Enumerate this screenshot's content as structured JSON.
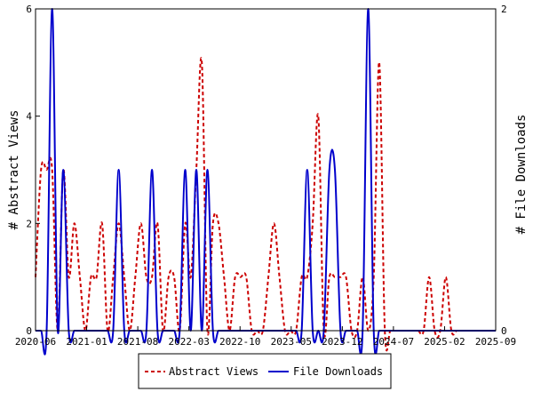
{
  "chart_data": {
    "type": "line",
    "x_tick_labels": [
      "2020-06",
      "2021-01",
      "2021-08",
      "2022-03",
      "2022-10",
      "2023-05",
      "2023-12",
      "2024-07",
      "2025-02",
      "2025-09"
    ],
    "ylabel": "# Abstract Views",
    "y2label": "# File Downloads",
    "ylim": [
      0,
      6
    ],
    "y2lim": [
      0,
      2
    ],
    "y_ticks": [
      "0",
      "2",
      "4",
      "6"
    ],
    "y2_ticks": [
      "0",
      "2"
    ],
    "grid": false,
    "legend_position": "bottom-center",
    "series": [
      {
        "name": "Abstract Views",
        "axis": "left",
        "color": "#cc0000",
        "style": "dashed",
        "values": [
          1,
          3,
          3,
          3,
          0,
          3,
          1,
          2,
          1,
          0,
          1,
          1,
          2,
          0,
          1,
          2,
          1,
          0,
          1,
          2,
          1,
          1,
          2,
          0,
          1,
          1,
          0,
          2,
          1,
          3,
          5,
          0,
          2,
          2,
          1,
          0,
          1,
          1,
          1,
          0,
          0,
          0,
          1,
          2,
          1,
          0,
          0,
          0,
          1,
          1,
          2,
          4,
          0,
          1,
          1,
          1,
          1,
          0,
          0,
          1,
          0,
          1,
          5,
          0,
          0,
          0,
          0,
          0,
          0,
          0,
          0,
          1,
          0,
          0,
          1,
          0,
          0,
          0,
          0,
          0,
          0,
          0,
          0,
          0
        ]
      },
      {
        "name": "File Downloads",
        "axis": "right",
        "color": "#0000cc",
        "style": "solid",
        "values": [
          0,
          0,
          0,
          2,
          0,
          1,
          0,
          0,
          0,
          0,
          0,
          0,
          0,
          0,
          0,
          1,
          0,
          0,
          0,
          0,
          0,
          1,
          0,
          0,
          0,
          0,
          0,
          1,
          0,
          1,
          0,
          1,
          0,
          0,
          0,
          0,
          0,
          0,
          0,
          0,
          0,
          0,
          0,
          0,
          0,
          0,
          0,
          0,
          0,
          1,
          0,
          0,
          0,
          1,
          1,
          0,
          0,
          0,
          0,
          0,
          2,
          0,
          0,
          0,
          0,
          0,
          0,
          0,
          0,
          0,
          0,
          0,
          0,
          0,
          0,
          0,
          0,
          0,
          0,
          0,
          0,
          0,
          0,
          0
        ]
      }
    ]
  }
}
